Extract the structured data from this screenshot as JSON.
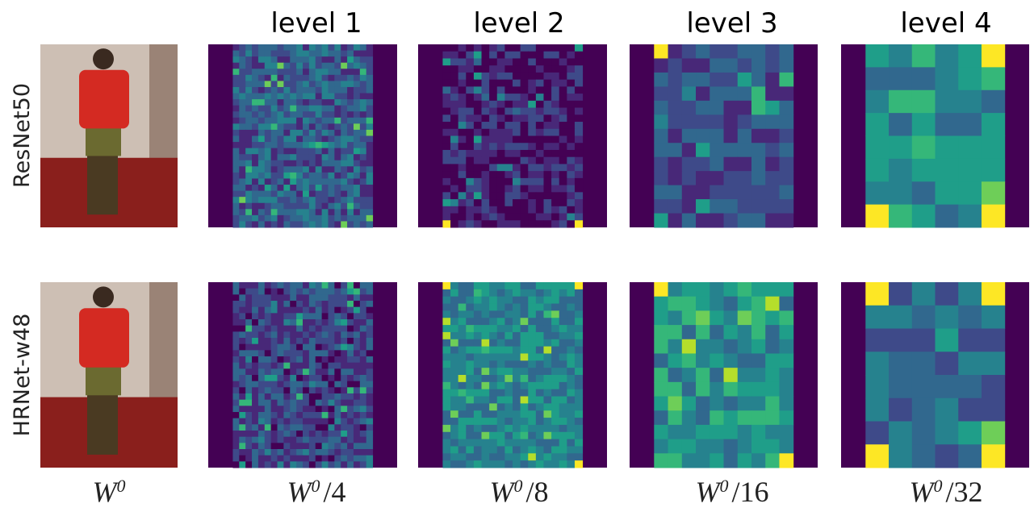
{
  "columns": [
    "level 1",
    "level 2",
    "level 3",
    "level 4"
  ],
  "rows": [
    "ResNet50",
    "HRNet-w48"
  ],
  "bottom_labels": [
    {
      "base": "W",
      "sup": "0"
    },
    {
      "base": "W",
      "sup": "0",
      "suffix": "/4"
    },
    {
      "base": "W",
      "sup": "0",
      "suffix": "/8"
    },
    {
      "base": "W",
      "sup": "0",
      "suffix": "/16"
    },
    {
      "base": "W",
      "sup": "0",
      "suffix": "/32"
    }
  ]
}
